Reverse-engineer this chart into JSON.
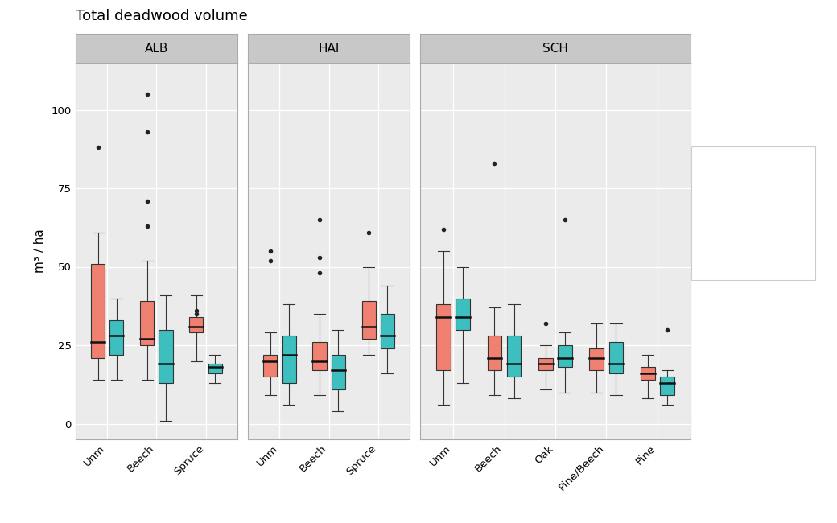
{
  "title": "Total deadwood volume",
  "ylabel": "m³ / ha",
  "panels": [
    "ALB",
    "HAI",
    "SCH"
  ],
  "color_2012": "#F08070",
  "color_2017": "#3DBFBF",
  "edge_color": "#1A1A1A",
  "background_color": "#EBEBEB",
  "panel_header_color": "#C8C8C8",
  "ylim": [
    -5,
    115
  ],
  "yticks": [
    0,
    25,
    50,
    75,
    100
  ],
  "panel_data": {
    "ALB": {
      "categories": [
        "Unm",
        "Beech",
        "Spruce"
      ],
      "data_2012": {
        "Unm": {
          "q1": 21,
          "median": 26,
          "q3": 51,
          "whislo": 14,
          "whishi": 61,
          "fliers": [
            88
          ]
        },
        "Beech": {
          "q1": 25,
          "median": 27,
          "q3": 39,
          "whislo": 14,
          "whishi": 52,
          "fliers": [
            93,
            105,
            71,
            63
          ]
        },
        "Spruce": {
          "q1": 29,
          "median": 31,
          "q3": 34,
          "whislo": 20,
          "whishi": 41,
          "fliers": [
            35,
            36
          ]
        }
      },
      "data_2017": {
        "Unm": {
          "q1": 22,
          "median": 28,
          "q3": 33,
          "whislo": 14,
          "whishi": 40,
          "fliers": []
        },
        "Beech": {
          "q1": 13,
          "median": 19,
          "q3": 30,
          "whislo": 1,
          "whishi": 41,
          "fliers": []
        },
        "Spruce": {
          "q1": 16,
          "median": 18,
          "q3": 19,
          "whislo": 13,
          "whishi": 22,
          "fliers": []
        }
      }
    },
    "HAI": {
      "categories": [
        "Unm",
        "Beech",
        "Spruce"
      ],
      "data_2012": {
        "Unm": {
          "q1": 15,
          "median": 20,
          "q3": 22,
          "whislo": 9,
          "whishi": 29,
          "fliers": [
            55,
            52
          ]
        },
        "Beech": {
          "q1": 17,
          "median": 20,
          "q3": 26,
          "whislo": 9,
          "whishi": 35,
          "fliers": [
            65,
            53,
            48
          ]
        },
        "Spruce": {
          "q1": 27,
          "median": 31,
          "q3": 39,
          "whislo": 22,
          "whishi": 50,
          "fliers": [
            61
          ]
        }
      },
      "data_2017": {
        "Unm": {
          "q1": 13,
          "median": 22,
          "q3": 28,
          "whislo": 6,
          "whishi": 38,
          "fliers": []
        },
        "Beech": {
          "q1": 11,
          "median": 17,
          "q3": 22,
          "whislo": 4,
          "whishi": 30,
          "fliers": []
        },
        "Spruce": {
          "q1": 24,
          "median": 28,
          "q3": 35,
          "whislo": 16,
          "whishi": 44,
          "fliers": []
        }
      }
    },
    "SCH": {
      "categories": [
        "Unm",
        "Beech",
        "Oak",
        "Pine/Beech",
        "Pine"
      ],
      "data_2012": {
        "Unm": {
          "q1": 17,
          "median": 34,
          "q3": 38,
          "whislo": 6,
          "whishi": 55,
          "fliers": [
            62
          ]
        },
        "Beech": {
          "q1": 17,
          "median": 21,
          "q3": 28,
          "whislo": 9,
          "whishi": 37,
          "fliers": [
            83
          ]
        },
        "Oak": {
          "q1": 17,
          "median": 19,
          "q3": 21,
          "whislo": 11,
          "whishi": 25,
          "fliers": [
            32
          ]
        },
        "Pine/Beech": {
          "q1": 17,
          "median": 21,
          "q3": 24,
          "whislo": 10,
          "whishi": 32,
          "fliers": []
        },
        "Pine": {
          "q1": 14,
          "median": 16,
          "q3": 18,
          "whislo": 8,
          "whishi": 22,
          "fliers": []
        }
      },
      "data_2017": {
        "Unm": {
          "q1": 30,
          "median": 34,
          "q3": 40,
          "whislo": 13,
          "whishi": 50,
          "fliers": []
        },
        "Beech": {
          "q1": 15,
          "median": 19,
          "q3": 28,
          "whislo": 8,
          "whishi": 38,
          "fliers": []
        },
        "Oak": {
          "q1": 18,
          "median": 21,
          "q3": 25,
          "whislo": 10,
          "whishi": 29,
          "fliers": [
            65
          ]
        },
        "Pine/Beech": {
          "q1": 16,
          "median": 19,
          "q3": 26,
          "whislo": 9,
          "whishi": 32,
          "fliers": []
        },
        "Pine": {
          "q1": 9,
          "median": 13,
          "q3": 15,
          "whislo": 6,
          "whishi": 17,
          "fliers": [
            30
          ]
        }
      }
    }
  }
}
